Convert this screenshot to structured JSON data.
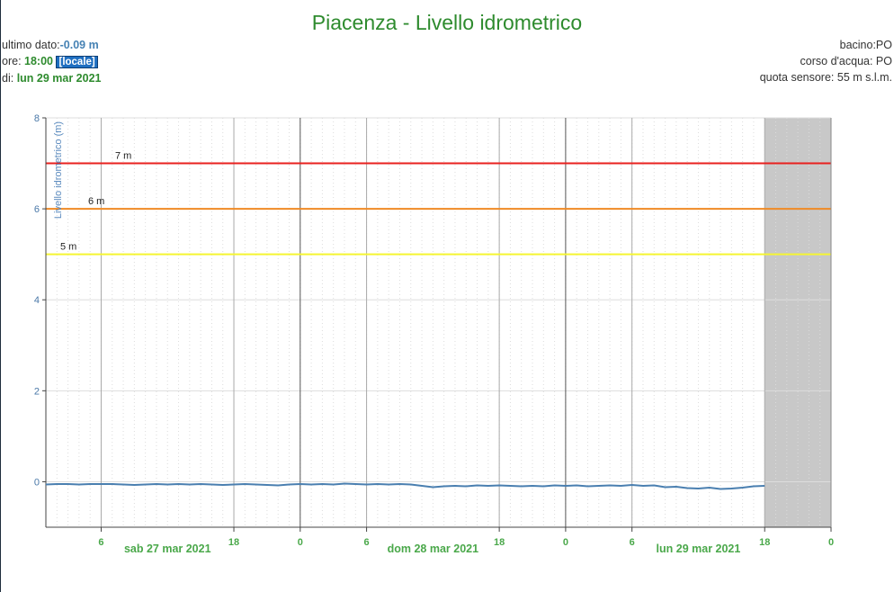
{
  "title": "Piacenza - Livello idrometrico",
  "info": {
    "ultimo_label": "ultimo dato:",
    "ultimo_value": "-0.09 m",
    "ore_label": "ore: ",
    "ore_value": "18:00",
    "ore_badge": "[locale]",
    "di_label": "di: ",
    "di_value": "lun 29 mar 2021",
    "bacino": "bacino:PO",
    "corso": "corso d'acqua: PO",
    "quota": "quota sensore: 55 m s.l.m."
  },
  "chart_data": {
    "type": "line",
    "ylabel": "Livello idrometrico (m)",
    "ylim": [
      -1,
      8
    ],
    "yticks": [
      "8",
      "6",
      "4",
      "2",
      "0"
    ],
    "x_range_hours": [
      0,
      71
    ],
    "x_ticks": [
      {
        "h": 5,
        "label": "6"
      },
      {
        "h": 17,
        "label": "18"
      },
      {
        "h": 23,
        "label": "0"
      },
      {
        "h": 29,
        "label": "6"
      },
      {
        "h": 41,
        "label": "18"
      },
      {
        "h": 47,
        "label": "0"
      },
      {
        "h": 53,
        "label": "6"
      },
      {
        "h": 65,
        "label": "18"
      },
      {
        "h": 71,
        "label": "0"
      }
    ],
    "day_labels": [
      {
        "h": 11,
        "label": "sab 27 mar 2021"
      },
      {
        "h": 35,
        "label": "dom 28 mar 2021"
      },
      {
        "h": 59,
        "label": "lun 29 mar 2021"
      }
    ],
    "future_band_start_h": 65,
    "thresholds": [
      {
        "value": 7,
        "label": "7 m",
        "color": "#e8201e"
      },
      {
        "value": 6,
        "label": "6 m",
        "color": "#f08a24"
      },
      {
        "value": 5,
        "label": "5 m",
        "color": "#f5f532"
      }
    ],
    "series": [
      {
        "color": "#4a7fb0",
        "points": [
          [
            0,
            -0.06
          ],
          [
            1,
            -0.05
          ],
          [
            2,
            -0.05
          ],
          [
            3,
            -0.06
          ],
          [
            4,
            -0.05
          ],
          [
            5,
            -0.05
          ],
          [
            6,
            -0.05
          ],
          [
            7,
            -0.06
          ],
          [
            8,
            -0.07
          ],
          [
            9,
            -0.06
          ],
          [
            10,
            -0.05
          ],
          [
            11,
            -0.06
          ],
          [
            12,
            -0.05
          ],
          [
            13,
            -0.06
          ],
          [
            14,
            -0.05
          ],
          [
            15,
            -0.06
          ],
          [
            16,
            -0.07
          ],
          [
            17,
            -0.06
          ],
          [
            18,
            -0.05
          ],
          [
            19,
            -0.06
          ],
          [
            20,
            -0.07
          ],
          [
            21,
            -0.08
          ],
          [
            22,
            -0.06
          ],
          [
            23,
            -0.05
          ],
          [
            24,
            -0.06
          ],
          [
            25,
            -0.05
          ],
          [
            26,
            -0.06
          ],
          [
            27,
            -0.04
          ],
          [
            28,
            -0.05
          ],
          [
            29,
            -0.06
          ],
          [
            30,
            -0.05
          ],
          [
            31,
            -0.06
          ],
          [
            32,
            -0.05
          ],
          [
            33,
            -0.06
          ],
          [
            34,
            -0.09
          ],
          [
            35,
            -0.12
          ],
          [
            36,
            -0.1
          ],
          [
            37,
            -0.09
          ],
          [
            38,
            -0.1
          ],
          [
            39,
            -0.08
          ],
          [
            40,
            -0.09
          ],
          [
            41,
            -0.08
          ],
          [
            42,
            -0.09
          ],
          [
            43,
            -0.1
          ],
          [
            44,
            -0.09
          ],
          [
            45,
            -0.1
          ],
          [
            46,
            -0.08
          ],
          [
            47,
            -0.09
          ],
          [
            48,
            -0.08
          ],
          [
            49,
            -0.1
          ],
          [
            50,
            -0.09
          ],
          [
            51,
            -0.08
          ],
          [
            52,
            -0.09
          ],
          [
            53,
            -0.07
          ],
          [
            54,
            -0.09
          ],
          [
            55,
            -0.08
          ],
          [
            56,
            -0.12
          ],
          [
            57,
            -0.11
          ],
          [
            58,
            -0.14
          ],
          [
            59,
            -0.15
          ],
          [
            60,
            -0.13
          ],
          [
            61,
            -0.16
          ],
          [
            62,
            -0.15
          ],
          [
            63,
            -0.13
          ],
          [
            64,
            -0.1
          ],
          [
            65,
            -0.09
          ]
        ]
      }
    ]
  }
}
